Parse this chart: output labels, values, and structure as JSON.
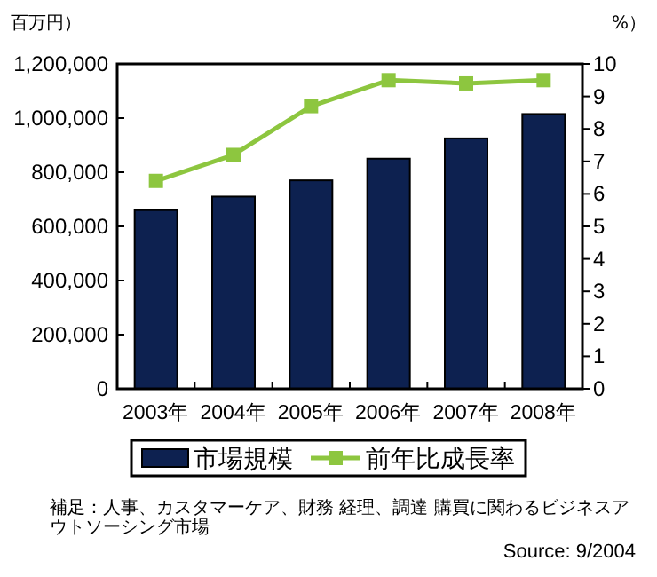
{
  "chart_data": {
    "type": "bar",
    "ylabel": "百万円）",
    "y2label": "%）",
    "categories": [
      "2003年",
      "2004年",
      "2005年",
      "2006年",
      "2007年",
      "2008年"
    ],
    "series": [
      {
        "name": "市場規模",
        "color": "#0d2150",
        "values": [
          660000,
          710000,
          770000,
          850000,
          925000,
          1015000
        ]
      },
      {
        "name": "前年比成長率",
        "type": "line",
        "axis": "y2",
        "color": "#8dc63f",
        "marker": "square",
        "values": [
          6.4,
          7.2,
          8.7,
          9.5,
          9.4,
          9.5
        ]
      }
    ],
    "ylim": [
      0,
      1200000
    ],
    "yticks": [
      {
        "value": 0,
        "label": "0"
      },
      {
        "value": 200000,
        "label": "200,000"
      },
      {
        "value": 400000,
        "label": "400,000"
      },
      {
        "value": 600000,
        "label": "600,000"
      },
      {
        "value": 800000,
        "label": "800,000"
      },
      {
        "value": 1000000,
        "label": "1,000,000"
      },
      {
        "value": 1200000,
        "label": "1,200,000"
      }
    ],
    "y2lim": [
      0,
      10
    ],
    "y2ticks": [
      0,
      1,
      2,
      3,
      4,
      5,
      6,
      7,
      8,
      9,
      10
    ],
    "legend": "bottom",
    "grid": false,
    "annotations": [
      "補足：人事、カスタマーケア、財務 経理、調達 購買に関わるビジネスアウトソーシング市場",
      "Source: 9/2004"
    ]
  }
}
